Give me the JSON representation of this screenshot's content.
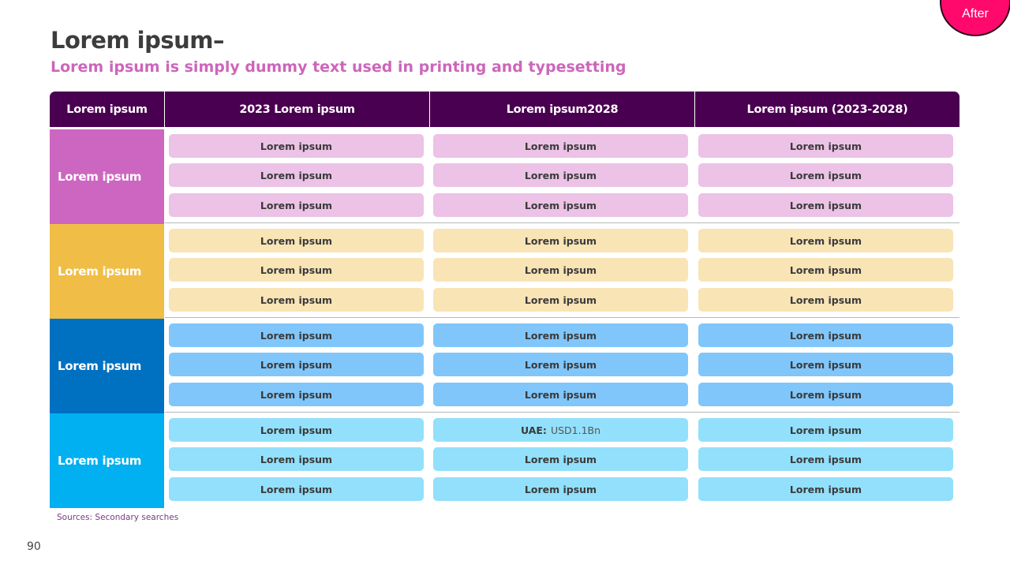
{
  "badge": {
    "label": "After",
    "color": "#ff0a6c"
  },
  "title": "Lorem ipsum–",
  "subtitle": "Lorem ipsum is simply dummy text used in printing and typesetting",
  "table": {
    "headers": [
      "Lorem ipsum",
      "2023 Lorem ipsum",
      "Lorem ipsum2028",
      "Lorem ipsum (2023-2028)"
    ],
    "header_color": "#4a0050",
    "rows": [
      {
        "label": "Lorem ipsum",
        "label_color": "#cc66c0",
        "cell_color": "#ecc2e6",
        "cells": [
          [
            "Lorem ipsum",
            "Lorem ipsum",
            "Lorem ipsum"
          ],
          [
            "Lorem ipsum",
            "Lorem ipsum",
            "Lorem ipsum"
          ],
          [
            "Lorem ipsum",
            "Lorem ipsum",
            "Lorem ipsum"
          ]
        ]
      },
      {
        "label": "Lorem ipsum",
        "label_color": "#f0be46",
        "cell_color": "#f9e4b6",
        "cells": [
          [
            "Lorem ipsum",
            "Lorem ipsum",
            "Lorem ipsum"
          ],
          [
            "Lorem ipsum",
            "Lorem ipsum",
            "Lorem ipsum"
          ],
          [
            "Lorem ipsum",
            "Lorem ipsum",
            "Lorem ipsum"
          ]
        ]
      },
      {
        "label": "Lorem ipsum",
        "label_color": "#0070c0",
        "cell_color": "#80c6fa",
        "cells": [
          [
            "Lorem ipsum",
            "Lorem ipsum",
            "Lorem ipsum"
          ],
          [
            "Lorem ipsum",
            "Lorem ipsum",
            "Lorem ipsum"
          ],
          [
            "Lorem ipsum",
            "Lorem ipsum",
            "Lorem ipsum"
          ]
        ]
      },
      {
        "label": "Lorem ipsum",
        "label_color": "#00b0f0",
        "cell_color": "#92e0fb",
        "cells": [
          [
            "Lorem ipsum",
            "UAE:|USD1.1Bn",
            "Lorem ipsum"
          ],
          [
            "Lorem ipsum",
            "Lorem ipsum",
            "Lorem ipsum"
          ],
          [
            "Lorem ipsum",
            "Lorem ipsum",
            "Lorem ipsum"
          ]
        ]
      }
    ]
  },
  "source": "Sources: Secondary searches",
  "page_number": "90"
}
